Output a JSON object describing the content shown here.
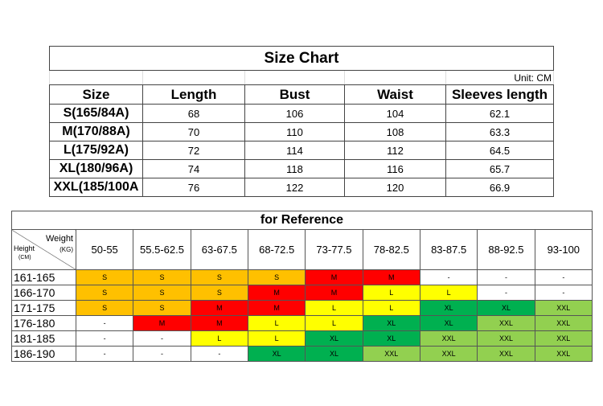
{
  "size_chart": {
    "title": "Size Chart",
    "unit": "Unit: CM",
    "headers": [
      "Size",
      "Length",
      "Bust",
      "Waist",
      "Sleeves length"
    ],
    "rows": [
      [
        "S(165/84A)",
        "68",
        "106",
        "104",
        "62.1"
      ],
      [
        "M(170/88A)",
        "70",
        "110",
        "108",
        "63.3"
      ],
      [
        "L(175/92A)",
        "72",
        "114",
        "112",
        "64.5"
      ],
      [
        "XL(180/96A)",
        "74",
        "118",
        "116",
        "65.7"
      ],
      [
        "XXL(185/100A",
        "76",
        "122",
        "120",
        "66.9"
      ]
    ]
  },
  "reference": {
    "title": "for Reference",
    "corner": {
      "weight": "Weight",
      "weight_unit": "(KG)",
      "height": "Height",
      "height_unit": "(CM)"
    },
    "weights": [
      "50-55",
      "55.5-62.5",
      "63-67.5",
      "68-72.5",
      "73-77.5",
      "78-82.5",
      "83-87.5",
      "88-92.5",
      "93-100"
    ],
    "rows": [
      {
        "height": "161-165",
        "sizes": [
          "S",
          "S",
          "S",
          "S",
          "M",
          "M",
          "-",
          "-",
          "-"
        ]
      },
      {
        "height": "166-170",
        "sizes": [
          "S",
          "S",
          "S",
          "M",
          "M",
          "L",
          "L",
          "-",
          "-"
        ]
      },
      {
        "height": "171-175",
        "sizes": [
          "S",
          "S",
          "M",
          "M",
          "L",
          "L",
          "XL",
          "XL",
          "XXL"
        ]
      },
      {
        "height": "176-180",
        "sizes": [
          "-",
          "M",
          "M",
          "L",
          "L",
          "XL",
          "XL",
          "XXL",
          "XXL"
        ]
      },
      {
        "height": "181-185",
        "sizes": [
          "-",
          "-",
          "L",
          "L",
          "XL",
          "XL",
          "XXL",
          "XXL",
          "XXL"
        ]
      },
      {
        "height": "186-190",
        "sizes": [
          "-",
          "-",
          "-",
          "XL",
          "XL",
          "XXL",
          "XXL",
          "XXL",
          "XXL"
        ]
      }
    ],
    "colors": {
      "S": "#FFC000",
      "M": "#FF0000",
      "L": "#FFFF00",
      "XL": "#00B050",
      "XXL": "#92D050"
    }
  }
}
